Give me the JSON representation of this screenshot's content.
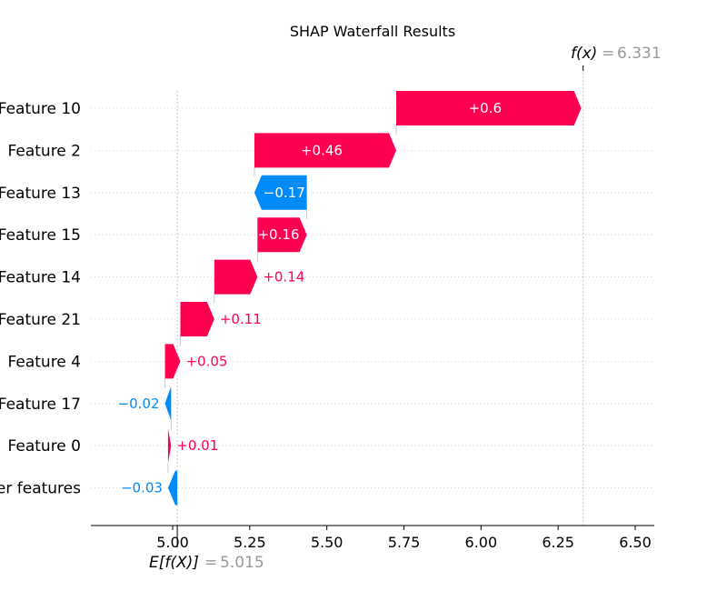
{
  "chart_data": {
    "type": "waterfall",
    "title": "SHAP Waterfall Results",
    "fx_label": "f(x)",
    "fx_value": "6.331",
    "efx_label": "E[f(X)]",
    "efx_value": "5.015",
    "base_value": 5.015,
    "final_value": 6.331,
    "xlim": [
      4.87,
      6.79
    ],
    "xticks": [
      5.0,
      5.25,
      5.5,
      5.75,
      6.0,
      6.25,
      6.5
    ],
    "xtick_labels": [
      "5.00",
      "5.25",
      "5.50",
      "5.75",
      "6.00",
      "6.25",
      "6.50"
    ],
    "features": [
      {
        "name": "Feature 10",
        "value": 0.6,
        "label": "+0.6",
        "label_inside": true
      },
      {
        "name": "Feature 2",
        "value": 0.46,
        "label": "+0.46",
        "label_inside": true
      },
      {
        "name": "Feature 13",
        "value": -0.17,
        "label": "−0.17",
        "label_inside": true
      },
      {
        "name": "Feature 15",
        "value": 0.16,
        "label": "+0.16",
        "label_inside": true
      },
      {
        "name": "Feature 14",
        "value": 0.14,
        "label": "+0.14",
        "label_inside": false
      },
      {
        "name": "Feature 21",
        "value": 0.11,
        "label": "+0.11",
        "label_inside": false
      },
      {
        "name": "Feature 4",
        "value": 0.05,
        "label": "+0.05",
        "label_inside": false
      },
      {
        "name": "Feature 17",
        "value": -0.02,
        "label": "−0.02",
        "label_inside": false
      },
      {
        "name": "Feature 0",
        "value": 0.01,
        "label": "+0.01",
        "label_inside": false
      },
      {
        "name": "er features",
        "value": -0.03,
        "label": "−0.03",
        "label_inside": false
      }
    ],
    "colors": {
      "positive": "#ff0051",
      "negative": "#008bfb",
      "muted": "#999999"
    }
  }
}
